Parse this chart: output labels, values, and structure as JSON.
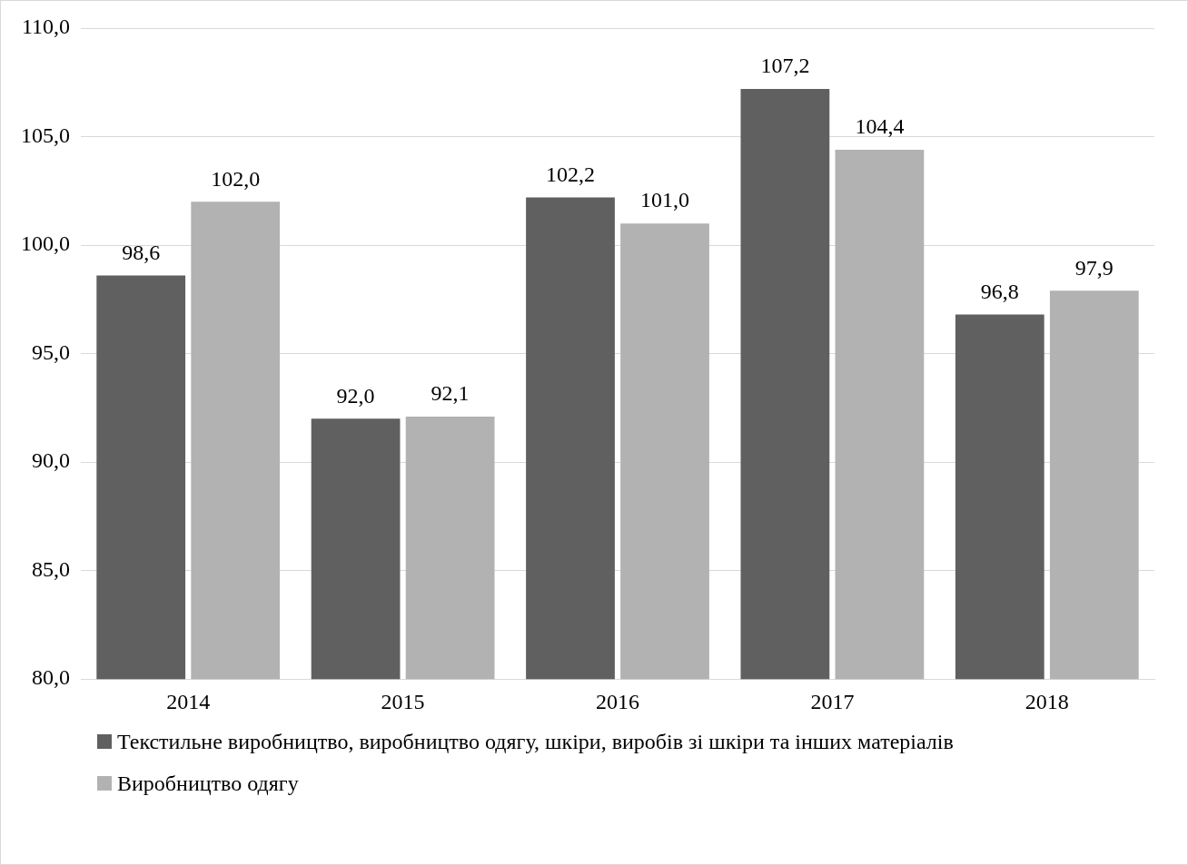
{
  "chart_data": {
    "type": "bar",
    "categories": [
      "2014",
      "2015",
      "2016",
      "2017",
      "2018"
    ],
    "series": [
      {
        "name": "Текстильне виробництво, виробництво одягу, шкіри, виробів зі шкіри та інших матеріалів",
        "color": "#606060",
        "values": [
          98.6,
          92.0,
          102.2,
          107.2,
          96.8
        ],
        "value_labels": [
          "98,6",
          "92,0",
          "102,2",
          "107,2",
          "96,8"
        ]
      },
      {
        "name": "Виробництво одягу",
        "color": "#b2b2b2",
        "values": [
          102.0,
          92.1,
          101.0,
          104.4,
          97.9
        ],
        "value_labels": [
          "102,0",
          "92,1",
          "101,0",
          "104,4",
          "97,9"
        ]
      }
    ],
    "ylim": [
      80,
      110
    ],
    "yticks": [
      {
        "value": 80,
        "label": "80,0"
      },
      {
        "value": 85,
        "label": "85,0"
      },
      {
        "value": 90,
        "label": "90,0"
      },
      {
        "value": 95,
        "label": "95,0"
      },
      {
        "value": 100,
        "label": "100,0"
      },
      {
        "value": 105,
        "label": "105,0"
      },
      {
        "value": 110,
        "label": "110,0"
      }
    ],
    "grid": "y",
    "legend": "bottom"
  }
}
